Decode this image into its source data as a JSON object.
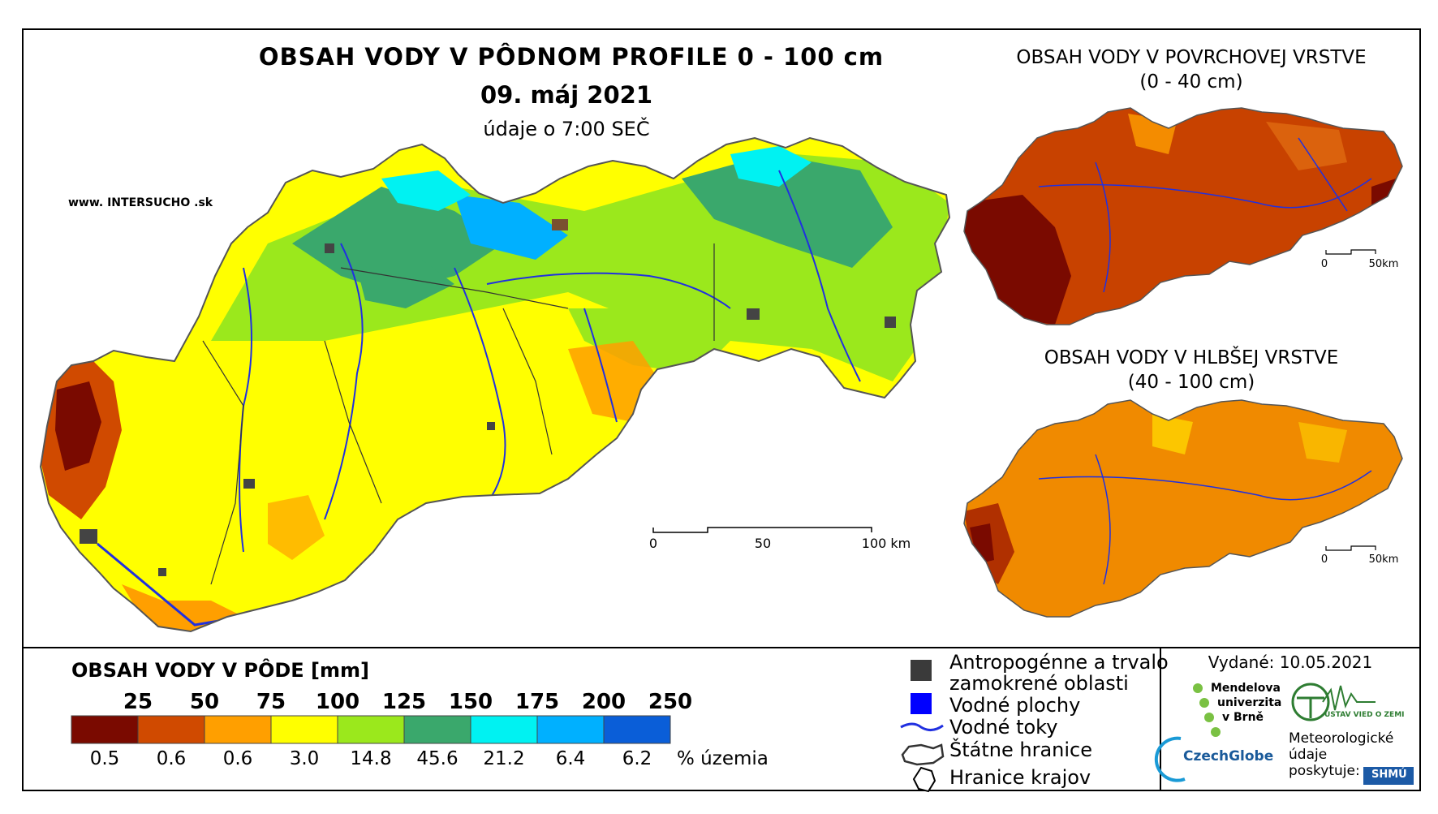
{
  "main_map": {
    "title": "OBSAH VODY V PÔDNOM PROFILE 0 - 100 cm",
    "date": "09. máj 2021",
    "subtitle": "údaje o 7:00 SEČ",
    "website": "www. INTERSUCHO .sk",
    "scale_labels": [
      "0",
      "50",
      "100 km"
    ]
  },
  "inset_top": {
    "title": "OBSAH VODY V POVRCHOVEJ VRSTVE",
    "subtitle": "(0 - 40 cm)",
    "scale_labels": [
      "0",
      "50km"
    ]
  },
  "inset_bottom": {
    "title": "OBSAH VODY V HLBŠEJ VRSTVE",
    "subtitle": "(40 - 100 cm)",
    "scale_labels": [
      "0",
      "50km"
    ]
  },
  "legend": {
    "title": "OBSAH VODY V PÔDE [mm]",
    "breaks": [
      "25",
      "50",
      "75",
      "100",
      "125",
      "150",
      "175",
      "200",
      "250"
    ],
    "colors": [
      "#7a0a00",
      "#d04a00",
      "#ff9f00",
      "#ffff00",
      "#9be81c",
      "#3aa86c",
      "#00f2f2",
      "#00b0ff",
      "#0a5ed8"
    ],
    "percentages": [
      "0.5",
      "0.6",
      "0.6",
      "3.0",
      "14.8",
      "45.6",
      "21.2",
      "6.4",
      "6.2"
    ],
    "percent_unit": "% územia",
    "symbols": [
      {
        "label": "Antropogénne a trvalo",
        "label2": "zamokrené oblasti",
        "icon": "dark-square-icon"
      },
      {
        "label": "Vodné plochy",
        "icon": "blue-square-icon"
      },
      {
        "label": "Vodné toky",
        "icon": "river-line-icon"
      },
      {
        "label": "Štátne hranice",
        "icon": "state-border-icon"
      },
      {
        "label": "Hranice krajov",
        "icon": "region-border-icon"
      }
    ]
  },
  "credits": {
    "issued": "Vydané: 10.05.2021",
    "mendel": [
      "Mendelova",
      "univerzita",
      "v Brně"
    ],
    "czechglobe": "CzechGlobe",
    "ustav": "ÚSTAV VIED O ZEMI",
    "meteo": [
      "Meteorologické",
      "údaje",
      "poskytuje:"
    ],
    "shmu": "SHMÚ"
  }
}
